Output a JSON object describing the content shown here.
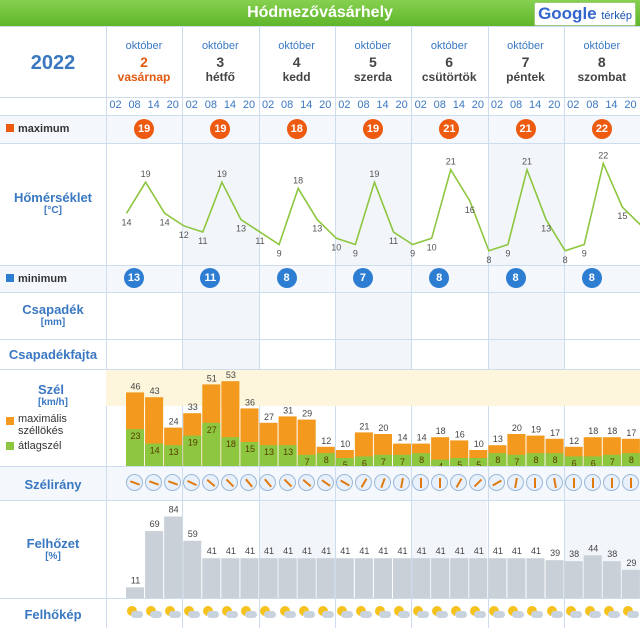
{
  "header": {
    "title": "Hódmezővásárhely",
    "map_brand": "Google",
    "map_label": "térkép"
  },
  "year": "2022",
  "days": [
    {
      "month": "október",
      "day": "2",
      "weekday": "vasárnap"
    },
    {
      "month": "október",
      "day": "3",
      "weekday": "hétfő"
    },
    {
      "month": "október",
      "day": "4",
      "weekday": "kedd"
    },
    {
      "month": "október",
      "day": "5",
      "weekday": "szerda"
    },
    {
      "month": "október",
      "day": "6",
      "weekday": "csütörtök"
    },
    {
      "month": "október",
      "day": "7",
      "weekday": "péntek"
    },
    {
      "month": "október",
      "day": "8",
      "weekday": "szombat"
    }
  ],
  "hours": [
    "02",
    "08",
    "14",
    "20"
  ],
  "labels": {
    "maximum": "maximum",
    "temperature": "Hőmérséklet",
    "temperature_unit": "[°C]",
    "minimum": "minimum",
    "precip": "Csapadék",
    "precip_unit": "[mm]",
    "precip_type": "Csapadékfajta",
    "wind": "Szél",
    "wind_unit": "[km/h]",
    "gust": "maximális széllökés",
    "avg_wind": "átlagszél",
    "wind_dir": "Szélirány",
    "cloud": "Felhőzet",
    "cloud_unit": "[%]",
    "cloud_pic": "Felhőkép"
  },
  "colors": {
    "accent": "#3a78c2",
    "max": "#ee5a10",
    "min": "#2d7dd2",
    "temp_line": "#8dc63f",
    "gust": "#f39a1e",
    "avg": "#8dc63f",
    "cloud": "#c9d0d8"
  },
  "chart_data": [
    {
      "type": "line",
      "title": "Hőmérséklet",
      "ylabel": "[°C]",
      "x": [
        "10-02 02",
        "10-02 08",
        "10-02 14",
        "10-02 20",
        "10-03 02",
        "10-03 08",
        "10-03 14",
        "10-03 20",
        "10-04 02",
        "10-04 08",
        "10-04 14",
        "10-04 20",
        "10-05 02",
        "10-05 08",
        "10-05 14",
        "10-05 20",
        "10-06 02",
        "10-06 08",
        "10-06 14",
        "10-06 20",
        "10-07 02",
        "10-07 08",
        "10-07 14",
        "10-07 20",
        "10-08 02",
        "10-08 08",
        "10-08 14",
        "10-08 20"
      ],
      "values": [
        14,
        19,
        14,
        12,
        11,
        19,
        13,
        11,
        9,
        18,
        13,
        10,
        9,
        19,
        11,
        9,
        10,
        21,
        16,
        8,
        9,
        21,
        13,
        8,
        9,
        22,
        15,
        12
      ],
      "labels": [
        "14",
        "19",
        "14",
        "12",
        "11",
        "19",
        "13",
        "11",
        "9",
        "18",
        "13",
        "10",
        "9",
        "19",
        "11",
        "9",
        "10",
        "21",
        "16",
        "8",
        "9",
        "21",
        "13",
        "8",
        "9",
        "22",
        "15",
        ""
      ],
      "daily_max": [
        19,
        19,
        18,
        19,
        21,
        21,
        22
      ],
      "daily_min": [
        13,
        11,
        8,
        7,
        8,
        8,
        8
      ]
    },
    {
      "type": "bar",
      "title": "Szél",
      "ylabel": "[km/h]",
      "series": [
        {
          "name": "maximális széllökés",
          "values": [
            46,
            43,
            24,
            33,
            51,
            53,
            36,
            27,
            31,
            29,
            12,
            10,
            21,
            20,
            14,
            14,
            18,
            16,
            10,
            13,
            20,
            19,
            17,
            12,
            18,
            18,
            17
          ]
        },
        {
          "name": "átlagszél",
          "values": [
            23,
            14,
            13,
            19,
            27,
            18,
            15,
            13,
            13,
            7,
            8,
            5,
            6,
            7,
            7,
            8,
            4,
            5,
            5,
            8,
            7,
            8,
            8,
            6,
            6,
            7,
            8
          ]
        }
      ]
    },
    {
      "type": "bar",
      "title": "Felhőzet",
      "ylabel": "[%]",
      "values": [
        11,
        69,
        84,
        59,
        41,
        41,
        41,
        41,
        41,
        41,
        41,
        41,
        41,
        41,
        41,
        41,
        41,
        41,
        41,
        41,
        41,
        41,
        39,
        38,
        44,
        38,
        29
      ],
      "ylim": [
        0,
        100
      ]
    }
  ]
}
